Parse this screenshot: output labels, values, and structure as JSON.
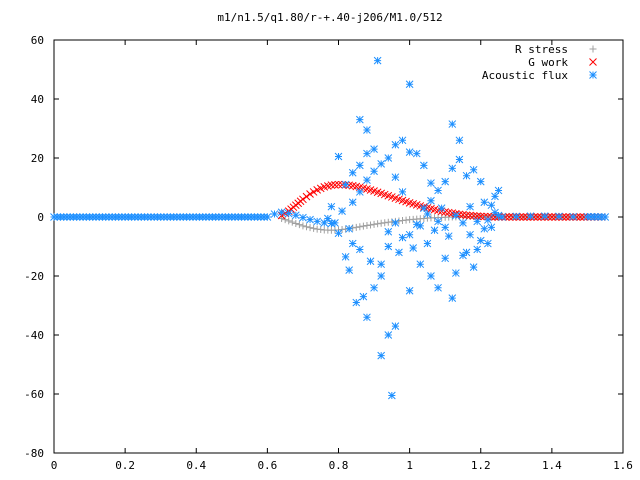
{
  "chart_data": {
    "type": "scatter",
    "title": "m1/n1.5/q1.80/r-+.40-j206/M1.0/512",
    "xlabel": "",
    "ylabel": "",
    "xlim": [
      0,
      1.6
    ],
    "ylim": [
      -80,
      60
    ],
    "xticks": [
      "0",
      "0.2",
      "0.4",
      "0.6",
      "0.8",
      "1",
      "1.2",
      "1.4",
      "1.6"
    ],
    "yticks": [
      "-80",
      "-60",
      "-40",
      "-20",
      "0",
      "20",
      "40",
      "60"
    ],
    "grid": false,
    "legend_position": "top-right",
    "series": [
      {
        "name": "R stress",
        "marker": "plus",
        "color": "#a0a0a0",
        "points": [
          [
            0.64,
            -0.5
          ],
          [
            0.66,
            -1.3
          ],
          [
            0.68,
            -2.2
          ],
          [
            0.7,
            -3.0
          ],
          [
            0.72,
            -3.6
          ],
          [
            0.74,
            -4.1
          ],
          [
            0.76,
            -4.4
          ],
          [
            0.78,
            -4.5
          ],
          [
            0.8,
            -4.4
          ],
          [
            0.82,
            -4.1
          ],
          [
            0.84,
            -3.7
          ],
          [
            0.86,
            -3.3
          ],
          [
            0.88,
            -2.9
          ],
          [
            0.9,
            -2.5
          ],
          [
            0.92,
            -2.1
          ],
          [
            0.94,
            -1.8
          ],
          [
            0.96,
            -1.5
          ],
          [
            0.98,
            -1.2
          ],
          [
            1.0,
            -0.9
          ],
          [
            1.02,
            -0.7
          ],
          [
            1.04,
            -0.5
          ],
          [
            1.06,
            -0.3
          ],
          [
            1.08,
            -0.2
          ],
          [
            1.1,
            -0.1
          ],
          [
            1.12,
            0.0
          ],
          [
            1.14,
            0.1
          ],
          [
            1.16,
            0.1
          ],
          [
            1.18,
            0.2
          ],
          [
            1.2,
            0.2
          ],
          [
            1.22,
            0.2
          ],
          [
            1.24,
            0.2
          ],
          [
            1.26,
            0.2
          ],
          [
            1.28,
            0.2
          ],
          [
            1.3,
            0.1
          ],
          [
            1.34,
            0.1
          ],
          [
            1.38,
            0.1
          ],
          [
            1.42,
            0.1
          ],
          [
            1.46,
            0.0
          ],
          [
            1.5,
            0.0
          ],
          [
            1.54,
            0.0
          ]
        ]
      },
      {
        "name": "G work",
        "marker": "cross",
        "color": "#ff0000",
        "points": [
          [
            0.64,
            0.5
          ],
          [
            0.66,
            2.0
          ],
          [
            0.68,
            4.0
          ],
          [
            0.7,
            6.0
          ],
          [
            0.72,
            7.8
          ],
          [
            0.74,
            9.2
          ],
          [
            0.76,
            10.2
          ],
          [
            0.78,
            10.8
          ],
          [
            0.8,
            11.0
          ],
          [
            0.82,
            10.9
          ],
          [
            0.84,
            10.6
          ],
          [
            0.86,
            10.1
          ],
          [
            0.88,
            9.5
          ],
          [
            0.9,
            8.8
          ],
          [
            0.92,
            8.0
          ],
          [
            0.94,
            7.2
          ],
          [
            0.96,
            6.4
          ],
          [
            0.98,
            5.6
          ],
          [
            1.0,
            4.8
          ],
          [
            1.02,
            4.1
          ],
          [
            1.04,
            3.4
          ],
          [
            1.06,
            2.8
          ],
          [
            1.08,
            2.2
          ],
          [
            1.1,
            1.7
          ],
          [
            1.12,
            1.3
          ],
          [
            1.14,
            0.9
          ],
          [
            1.16,
            0.6
          ],
          [
            1.18,
            0.4
          ],
          [
            1.2,
            0.2
          ],
          [
            1.22,
            0.1
          ],
          [
            1.24,
            0.0
          ],
          [
            1.26,
            0.0
          ],
          [
            1.3,
            0.0
          ],
          [
            1.34,
            0.0
          ],
          [
            1.38,
            0.0
          ],
          [
            1.42,
            0.0
          ],
          [
            1.46,
            0.0
          ],
          [
            1.5,
            0.0
          ],
          [
            1.54,
            0.0
          ]
        ]
      },
      {
        "name": "Acoustic flux",
        "marker": "star",
        "color": "#1e90ff",
        "points": [
          [
            0.0,
            0.0
          ],
          [
            0.1,
            0.0
          ],
          [
            0.2,
            0.0
          ],
          [
            0.3,
            0.0
          ],
          [
            0.4,
            0.0
          ],
          [
            0.5,
            0.0
          ],
          [
            0.6,
            0.0
          ],
          [
            0.62,
            1.0
          ],
          [
            0.64,
            1.6
          ],
          [
            0.66,
            1.2
          ],
          [
            0.68,
            0.6
          ],
          [
            0.7,
            -0.2
          ],
          [
            0.72,
            -0.9
          ],
          [
            0.74,
            -1.5
          ],
          [
            0.76,
            -2.0
          ],
          [
            0.78,
            -2.2
          ],
          [
            0.8,
            20.5
          ],
          [
            0.82,
            11.0
          ],
          [
            0.84,
            15.0
          ],
          [
            0.86,
            17.5
          ],
          [
            0.88,
            21.5
          ],
          [
            0.9,
            23.0
          ],
          [
            0.92,
            -20.0
          ],
          [
            0.94,
            -5.0
          ],
          [
            0.96,
            13.5
          ],
          [
            0.98,
            8.5
          ],
          [
            1.0,
            -6.0
          ],
          [
            1.02,
            -2.5
          ],
          [
            1.04,
            3.0
          ],
          [
            1.06,
            5.5
          ],
          [
            1.08,
            -1.5
          ],
          [
            1.1,
            -3.5
          ],
          [
            1.12,
            31.5
          ],
          [
            1.14,
            26.0
          ],
          [
            1.16,
            -12.0
          ],
          [
            1.18,
            -17.0
          ],
          [
            1.2,
            -8.0
          ],
          [
            1.22,
            -9.0
          ],
          [
            1.24,
            1.5
          ],
          [
            0.91,
            53.0
          ],
          [
            1.0,
            45.0
          ],
          [
            0.86,
            33.0
          ],
          [
            0.88,
            29.5
          ],
          [
            0.95,
            -60.5
          ],
          [
            0.92,
            -47.0
          ],
          [
            0.94,
            -40.0
          ],
          [
            0.96,
            -37.0
          ],
          [
            0.88,
            -34.0
          ],
          [
            0.85,
            -29.0
          ],
          [
            0.87,
            -27.0
          ],
          [
            0.9,
            -24.0
          ],
          [
            0.83,
            -18.0
          ],
          [
            0.82,
            -13.5
          ],
          [
            0.84,
            -9.0
          ],
          [
            0.8,
            -5.5
          ],
          [
            0.79,
            -2.0
          ],
          [
            0.81,
            2.0
          ],
          [
            0.78,
            3.5
          ],
          [
            0.77,
            -0.5
          ],
          [
            0.83,
            -4.0
          ],
          [
            0.86,
            -11.0
          ],
          [
            0.89,
            -15.0
          ],
          [
            0.92,
            -16.0
          ],
          [
            0.94,
            -10.0
          ],
          [
            0.97,
            -12.0
          ],
          [
            1.0,
            -25.0
          ],
          [
            1.03,
            -16.0
          ],
          [
            1.05,
            -9.0
          ],
          [
            1.06,
            -20.0
          ],
          [
            1.08,
            -24.0
          ],
          [
            1.1,
            -14.0
          ],
          [
            1.12,
            -27.5
          ],
          [
            1.13,
            -19.0
          ],
          [
            1.15,
            -13.0
          ],
          [
            1.17,
            -6.0
          ],
          [
            1.19,
            -11.0
          ],
          [
            1.21,
            -4.0
          ],
          [
            1.22,
            -1.0
          ],
          [
            1.23,
            4.0
          ],
          [
            1.24,
            7.0
          ],
          [
            1.25,
            9.0
          ],
          [
            1.2,
            12.0
          ],
          [
            1.18,
            16.0
          ],
          [
            1.16,
            14.0
          ],
          [
            1.14,
            19.5
          ],
          [
            1.12,
            16.5
          ],
          [
            1.1,
            12.0
          ],
          [
            1.08,
            9.0
          ],
          [
            1.06,
            11.5
          ],
          [
            1.04,
            17.5
          ],
          [
            1.02,
            21.5
          ],
          [
            1.0,
            22.0
          ],
          [
            0.98,
            26.0
          ],
          [
            0.96,
            24.5
          ],
          [
            0.94,
            20.0
          ],
          [
            0.92,
            18.0
          ],
          [
            0.9,
            15.5
          ],
          [
            0.88,
            12.5
          ],
          [
            0.86,
            8.5
          ],
          [
            0.84,
            5.0
          ],
          [
            0.96,
            -2.0
          ],
          [
            0.98,
            -7.0
          ],
          [
            1.01,
            -10.5
          ],
          [
            1.03,
            -3.0
          ],
          [
            1.05,
            1.0
          ],
          [
            1.07,
            -4.5
          ],
          [
            1.09,
            3.0
          ],
          [
            1.11,
            -6.5
          ],
          [
            1.13,
            0.5
          ],
          [
            1.15,
            -2.0
          ],
          [
            1.17,
            3.5
          ],
          [
            1.19,
            -1.5
          ],
          [
            1.21,
            5.0
          ],
          [
            1.23,
            -3.5
          ],
          [
            1.25,
            0.5
          ],
          [
            1.26,
            0.0
          ],
          [
            1.3,
            0.2
          ],
          [
            1.34,
            0.3
          ],
          [
            1.38,
            0.3
          ],
          [
            1.42,
            0.2
          ],
          [
            1.46,
            0.1
          ],
          [
            1.5,
            0.1
          ],
          [
            1.55,
            0.0
          ]
        ]
      }
    ]
  }
}
